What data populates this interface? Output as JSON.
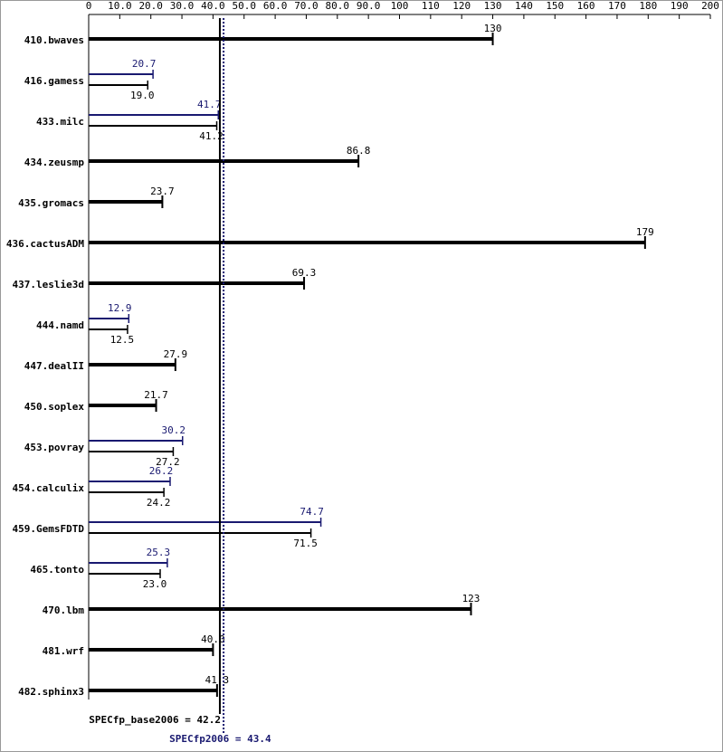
{
  "chart_data": {
    "type": "bar",
    "orientation": "horizontal",
    "categories": [
      "410.bwaves",
      "416.gamess",
      "433.milc",
      "434.zeusmp",
      "435.gromacs",
      "436.cactusADM",
      "437.leslie3d",
      "444.namd",
      "447.dealII",
      "450.soplex",
      "453.povray",
      "454.calculix",
      "459.GemsFDTD",
      "465.tonto",
      "470.lbm",
      "481.wrf",
      "482.sphinx3"
    ],
    "series": [
      {
        "color": "#000000",
        "values": [
          130,
          19.0,
          41.2,
          86.8,
          23.7,
          179,
          69.3,
          12.5,
          27.9,
          21.7,
          27.2,
          24.2,
          71.5,
          23.0,
          123,
          40.0,
          41.3
        ],
        "value_labels": [
          "130",
          "19.0",
          "41.2",
          "86.8",
          "23.7",
          "179",
          "69.3",
          "12.5",
          "27.9",
          "21.7",
          "27.2",
          "24.2",
          "71.5",
          "23.0",
          "123",
          "40.0",
          "41.3"
        ]
      },
      {
        "color": "#191970",
        "values": [
          null,
          20.7,
          41.7,
          null,
          null,
          null,
          null,
          12.9,
          null,
          null,
          30.2,
          26.2,
          74.7,
          25.3,
          null,
          null,
          null
        ],
        "value_labels": [
          null,
          "20.7",
          "41.7",
          null,
          null,
          null,
          null,
          "12.9",
          null,
          null,
          "30.2",
          "26.2",
          "74.7",
          "25.3",
          null,
          null,
          null
        ]
      }
    ],
    "xlim": [
      0,
      200
    ],
    "xticks": [
      0,
      {
        "value": 10,
        "label": "10.0"
      },
      {
        "value": 20,
        "label": "20.0"
      },
      {
        "value": 30,
        "label": "30.0"
      },
      {
        "value": 40,
        "label": "40.0"
      },
      {
        "value": 50,
        "label": "50.0"
      },
      {
        "value": 60,
        "label": "60.0"
      },
      {
        "value": 70,
        "label": "70.0"
      },
      {
        "value": 80,
        "label": "80.0"
      },
      {
        "value": 90,
        "label": "90.0"
      },
      100,
      110,
      120,
      130,
      140,
      150,
      160,
      170,
      180,
      190,
      200
    ],
    "reference_lines": [
      {
        "label": "SPECfp_base2006 = 42.2",
        "value": 42.2,
        "color": "#000000",
        "style": "solid"
      },
      {
        "label": "SPECfp2006 = 43.4",
        "value": 43.4,
        "color": "#191970",
        "style": "dotted"
      }
    ]
  }
}
